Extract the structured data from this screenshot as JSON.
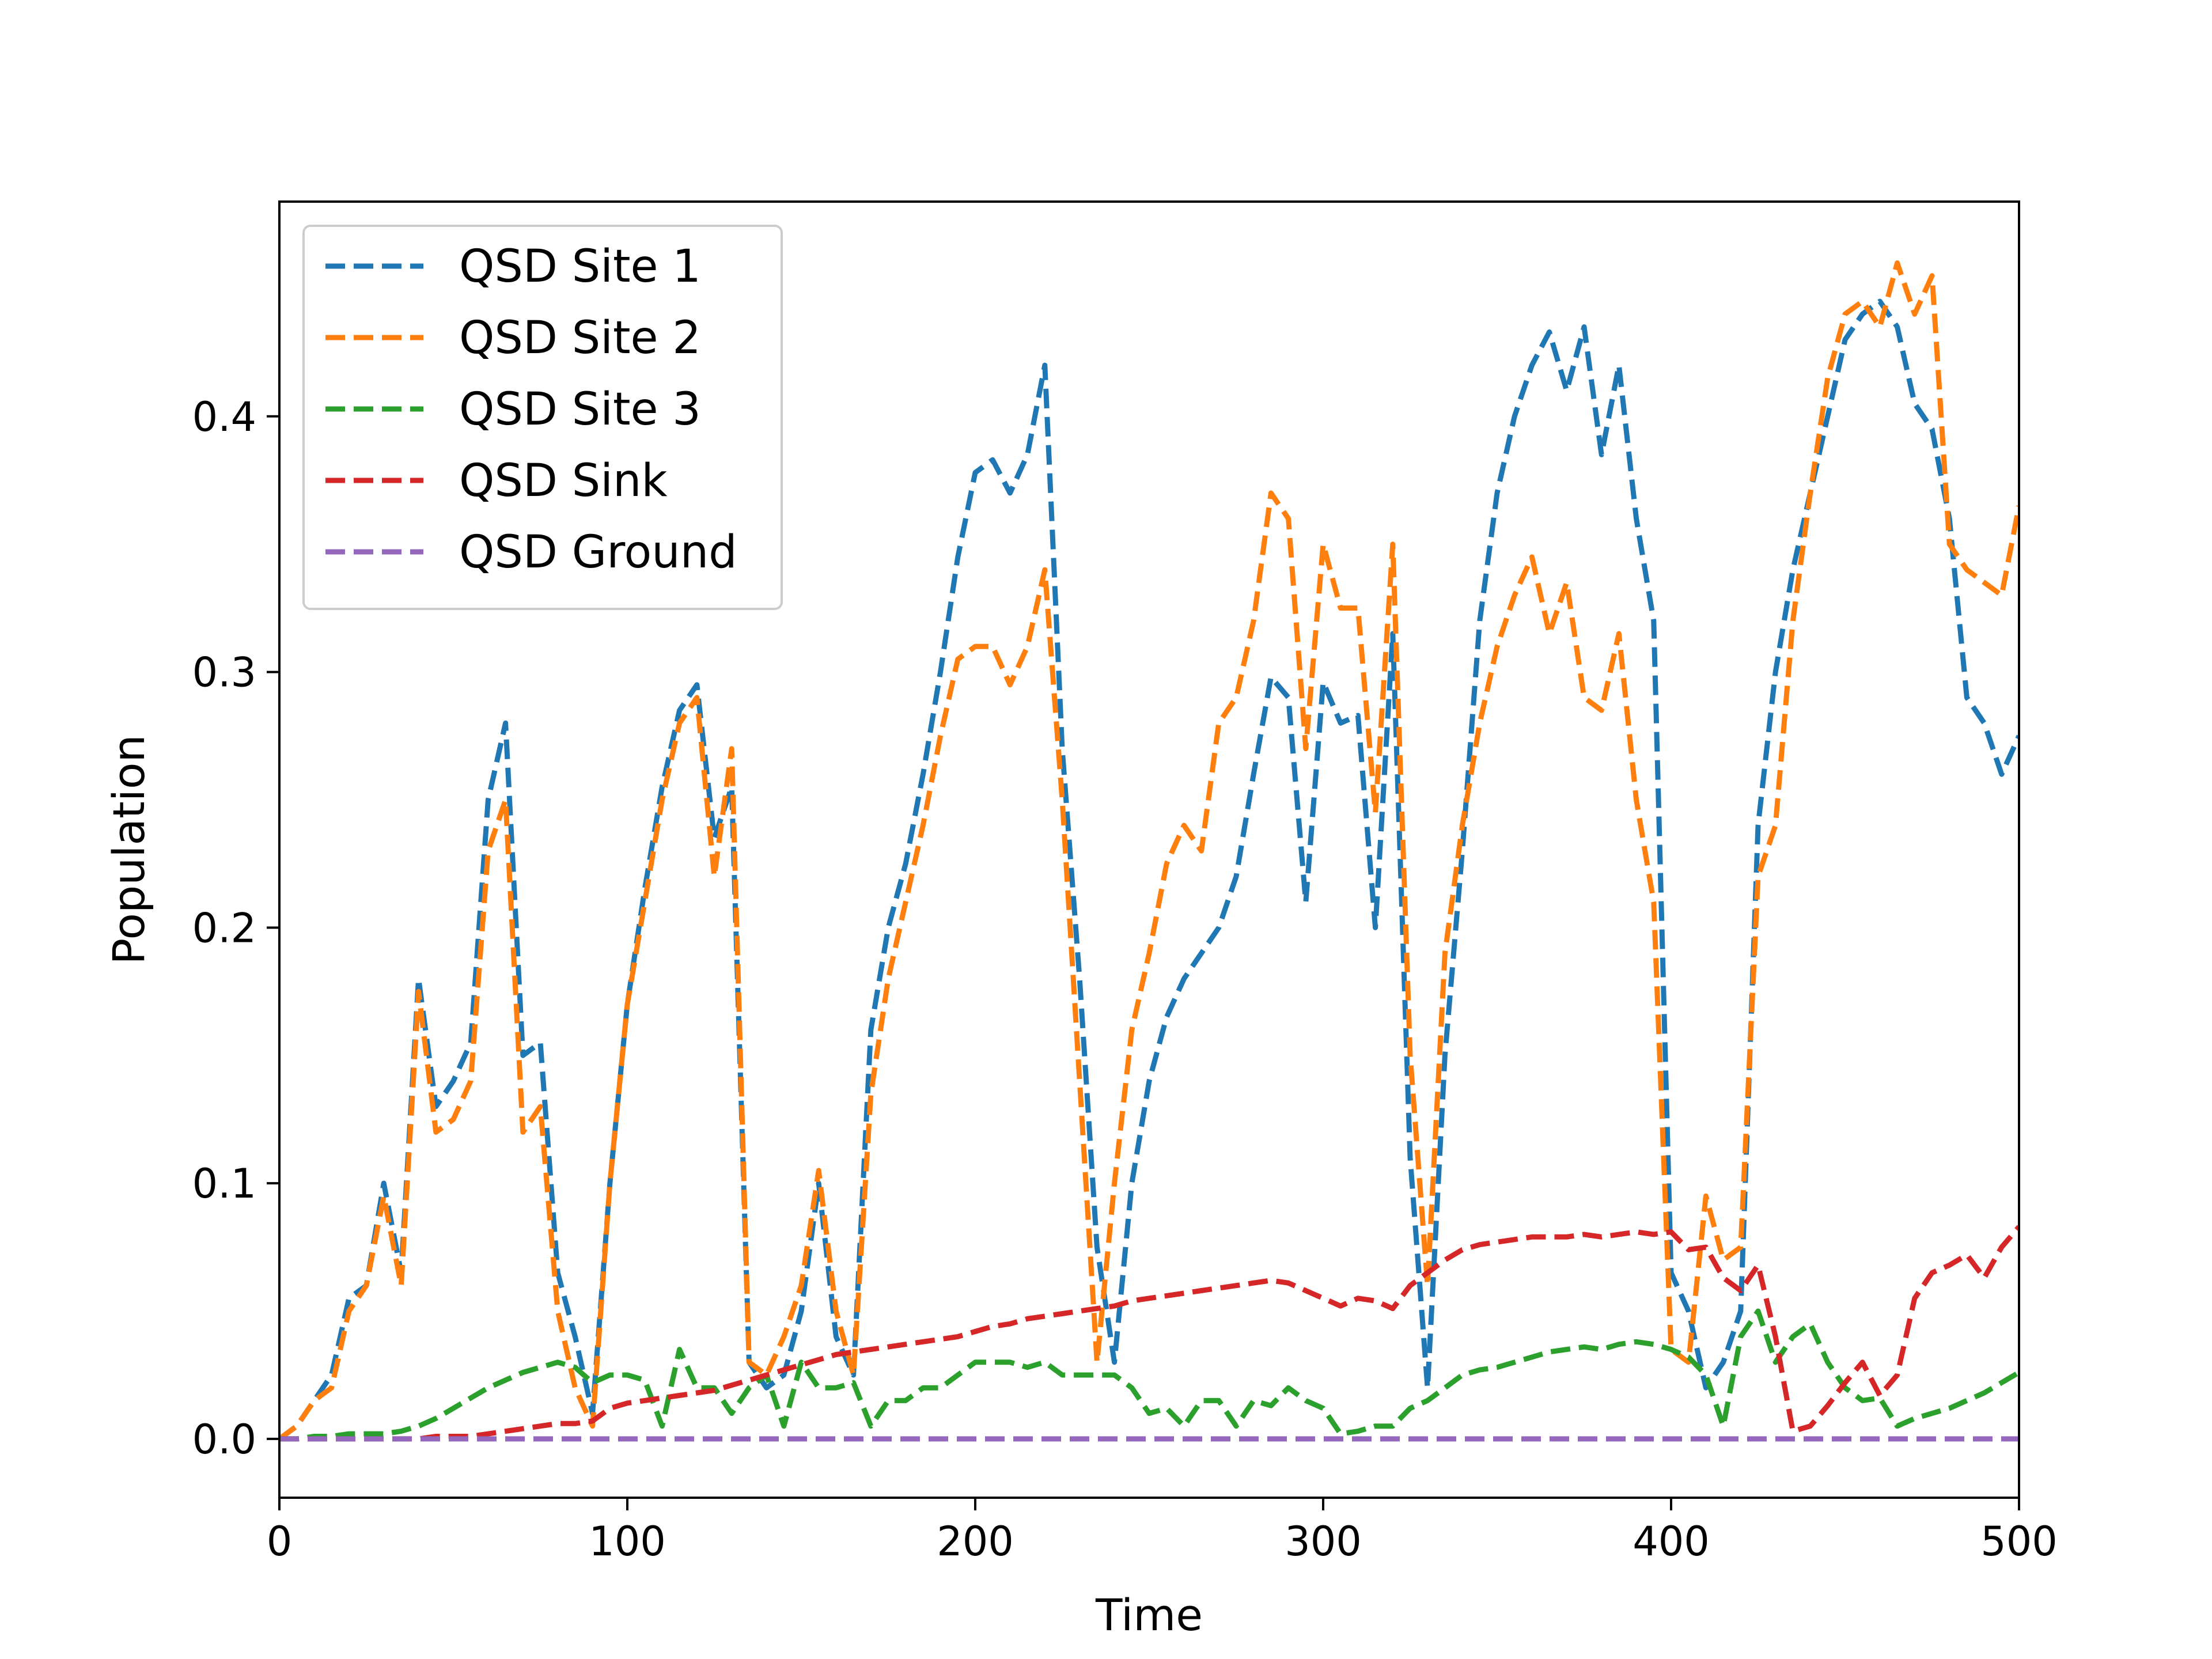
{
  "chart_data": {
    "type": "line",
    "xlabel": "Time",
    "ylabel": "Population",
    "xlim": [
      0,
      500
    ],
    "ylim": [
      -0.023,
      0.484
    ],
    "xticks": [
      0,
      100,
      200,
      300,
      400,
      500
    ],
    "yticks": [
      0.0,
      0.1,
      0.2,
      0.3,
      0.4
    ],
    "xtick_labels": [
      "0",
      "100",
      "200",
      "300",
      "400",
      "500"
    ],
    "ytick_labels": [
      "0.0",
      "0.1",
      "0.2",
      "0.3",
      "0.4"
    ],
    "grid": false,
    "legend": "upper-left",
    "line_style": "dashed",
    "series": [
      {
        "name": "QSD Site 1",
        "color": "#1f77b4",
        "x": [
          0,
          5,
          10,
          15,
          20,
          25,
          30,
          35,
          40,
          45,
          50,
          55,
          60,
          65,
          70,
          75,
          80,
          85,
          90,
          95,
          100,
          105,
          110,
          115,
          120,
          125,
          130,
          135,
          140,
          145,
          150,
          155,
          160,
          165,
          170,
          175,
          180,
          185,
          190,
          195,
          200,
          205,
          210,
          215,
          220,
          225,
          230,
          235,
          240,
          245,
          250,
          255,
          260,
          265,
          270,
          275,
          280,
          285,
          290,
          295,
          300,
          305,
          310,
          315,
          320,
          325,
          330,
          335,
          340,
          345,
          350,
          355,
          360,
          365,
          370,
          375,
          380,
          385,
          390,
          395,
          400,
          405,
          410,
          415,
          420,
          425,
          430,
          435,
          440,
          445,
          450,
          455,
          460,
          465,
          470,
          475,
          480,
          485,
          490,
          495,
          500
        ],
        "values": [
          0,
          0.005,
          0.015,
          0.025,
          0.055,
          0.06,
          0.1,
          0.065,
          0.18,
          0.13,
          0.14,
          0.155,
          0.25,
          0.28,
          0.15,
          0.155,
          0.065,
          0.04,
          0.01,
          0.1,
          0.17,
          0.215,
          0.255,
          0.285,
          0.295,
          0.235,
          0.255,
          0.03,
          0.02,
          0.025,
          0.05,
          0.1,
          0.04,
          0.025,
          0.16,
          0.2,
          0.225,
          0.26,
          0.3,
          0.345,
          0.378,
          0.383,
          0.37,
          0.385,
          0.42,
          0.27,
          0.18,
          0.075,
          0.03,
          0.1,
          0.14,
          0.165,
          0.18,
          0.19,
          0.2,
          0.22,
          0.26,
          0.298,
          0.29,
          0.21,
          0.296,
          0.28,
          0.283,
          0.2,
          0.315,
          0.11,
          0.02,
          0.15,
          0.23,
          0.32,
          0.37,
          0.4,
          0.42,
          0.433,
          0.41,
          0.435,
          0.385,
          0.42,
          0.36,
          0.32,
          0.065,
          0.05,
          0.02,
          0.03,
          0.05,
          0.24,
          0.3,
          0.34,
          0.37,
          0.4,
          0.43,
          0.44,
          0.445,
          0.435,
          0.405,
          0.395,
          0.36,
          0.29,
          0.28,
          0.26,
          0.275
        ]
      },
      {
        "name": "QSD Site 2",
        "color": "#ff7f0e",
        "x": [
          0,
          5,
          10,
          15,
          20,
          25,
          30,
          35,
          40,
          45,
          50,
          55,
          60,
          65,
          70,
          75,
          80,
          85,
          90,
          95,
          100,
          105,
          110,
          115,
          120,
          125,
          130,
          135,
          140,
          145,
          150,
          155,
          160,
          165,
          170,
          175,
          180,
          185,
          190,
          195,
          200,
          205,
          210,
          215,
          220,
          225,
          230,
          235,
          240,
          245,
          250,
          255,
          260,
          265,
          270,
          275,
          280,
          285,
          290,
          295,
          300,
          305,
          310,
          315,
          320,
          325,
          330,
          335,
          340,
          345,
          350,
          355,
          360,
          365,
          370,
          375,
          380,
          385,
          390,
          395,
          400,
          405,
          410,
          415,
          420,
          425,
          430,
          435,
          440,
          445,
          450,
          455,
          460,
          465,
          470,
          475,
          480,
          485,
          490,
          495,
          500
        ],
        "values": [
          0,
          0.005,
          0.015,
          0.02,
          0.05,
          0.06,
          0.095,
          0.06,
          0.175,
          0.12,
          0.125,
          0.14,
          0.23,
          0.25,
          0.12,
          0.13,
          0.05,
          0.02,
          0.005,
          0.1,
          0.17,
          0.21,
          0.25,
          0.28,
          0.29,
          0.22,
          0.27,
          0.03,
          0.025,
          0.04,
          0.06,
          0.105,
          0.05,
          0.025,
          0.135,
          0.18,
          0.21,
          0.24,
          0.275,
          0.305,
          0.31,
          0.31,
          0.295,
          0.31,
          0.34,
          0.25,
          0.14,
          0.03,
          0.1,
          0.16,
          0.19,
          0.225,
          0.24,
          0.23,
          0.28,
          0.29,
          0.32,
          0.37,
          0.36,
          0.27,
          0.35,
          0.325,
          0.325,
          0.245,
          0.35,
          0.15,
          0.06,
          0.19,
          0.24,
          0.28,
          0.31,
          0.33,
          0.345,
          0.315,
          0.335,
          0.29,
          0.285,
          0.315,
          0.25,
          0.21,
          0.035,
          0.03,
          0.095,
          0.07,
          0.075,
          0.22,
          0.24,
          0.32,
          0.37,
          0.415,
          0.44,
          0.445,
          0.435,
          0.46,
          0.44,
          0.455,
          0.35,
          0.34,
          0.335,
          0.33,
          0.365
        ]
      },
      {
        "name": "QSD Site 3",
        "color": "#2ca02c",
        "x": [
          0,
          5,
          10,
          15,
          20,
          25,
          30,
          35,
          40,
          45,
          50,
          55,
          60,
          65,
          70,
          75,
          80,
          85,
          90,
          95,
          100,
          105,
          110,
          115,
          120,
          125,
          130,
          135,
          140,
          145,
          150,
          155,
          160,
          165,
          170,
          175,
          180,
          185,
          190,
          195,
          200,
          205,
          210,
          215,
          220,
          225,
          230,
          235,
          240,
          245,
          250,
          255,
          260,
          265,
          270,
          275,
          280,
          285,
          290,
          295,
          300,
          305,
          310,
          315,
          320,
          325,
          330,
          335,
          340,
          345,
          350,
          355,
          360,
          365,
          370,
          375,
          380,
          385,
          390,
          395,
          400,
          405,
          410,
          415,
          420,
          425,
          430,
          435,
          440,
          445,
          450,
          455,
          460,
          465,
          470,
          475,
          480,
          485,
          490,
          495,
          500
        ],
        "values": [
          0,
          0,
          0.001,
          0.001,
          0.002,
          0.002,
          0.002,
          0.003,
          0.005,
          0.008,
          0.012,
          0.016,
          0.02,
          0.023,
          0.026,
          0.028,
          0.03,
          0.028,
          0.022,
          0.025,
          0.025,
          0.023,
          0.005,
          0.035,
          0.02,
          0.02,
          0.01,
          0.02,
          0.025,
          0.005,
          0.03,
          0.02,
          0.02,
          0.022,
          0.005,
          0.015,
          0.015,
          0.02,
          0.02,
          0.025,
          0.03,
          0.03,
          0.03,
          0.028,
          0.03,
          0.025,
          0.025,
          0.025,
          0.025,
          0.02,
          0.01,
          0.012,
          0.005,
          0.015,
          0.015,
          0.005,
          0.015,
          0.013,
          0.02,
          0.015,
          0.012,
          0.002,
          0.003,
          0.005,
          0.005,
          0.012,
          0.015,
          0.02,
          0.025,
          0.027,
          0.028,
          0.03,
          0.032,
          0.034,
          0.035,
          0.036,
          0.035,
          0.037,
          0.038,
          0.037,
          0.035,
          0.032,
          0.025,
          0.005,
          0.04,
          0.05,
          0.03,
          0.04,
          0.045,
          0.03,
          0.02,
          0.015,
          0.016,
          0.005,
          0.008,
          0.01,
          0.012,
          0.015,
          0.018,
          0.022,
          0.026
        ]
      },
      {
        "name": "QSD Sink",
        "color": "#d62728",
        "x": [
          0,
          5,
          10,
          15,
          20,
          25,
          30,
          35,
          40,
          45,
          50,
          55,
          60,
          65,
          70,
          75,
          80,
          85,
          90,
          95,
          100,
          105,
          110,
          115,
          120,
          125,
          130,
          135,
          140,
          145,
          150,
          155,
          160,
          165,
          170,
          175,
          180,
          185,
          190,
          195,
          200,
          205,
          210,
          215,
          220,
          225,
          230,
          235,
          240,
          245,
          250,
          255,
          260,
          265,
          270,
          275,
          280,
          285,
          290,
          295,
          300,
          305,
          310,
          315,
          320,
          325,
          330,
          335,
          340,
          345,
          350,
          355,
          360,
          365,
          370,
          375,
          380,
          385,
          390,
          395,
          400,
          405,
          410,
          415,
          420,
          425,
          430,
          435,
          440,
          445,
          450,
          455,
          460,
          465,
          470,
          475,
          480,
          485,
          490,
          495,
          500
        ],
        "values": [
          0,
          0,
          0,
          0,
          0,
          0,
          0,
          0,
          0,
          0.001,
          0.001,
          0.001,
          0.002,
          0.003,
          0.004,
          0.005,
          0.006,
          0.006,
          0.007,
          0.012,
          0.014,
          0.015,
          0.016,
          0.017,
          0.018,
          0.019,
          0.021,
          0.023,
          0.025,
          0.027,
          0.029,
          0.031,
          0.033,
          0.034,
          0.035,
          0.036,
          0.037,
          0.038,
          0.039,
          0.04,
          0.042,
          0.044,
          0.045,
          0.047,
          0.048,
          0.049,
          0.05,
          0.051,
          0.052,
          0.054,
          0.055,
          0.056,
          0.057,
          0.058,
          0.059,
          0.06,
          0.061,
          0.062,
          0.061,
          0.058,
          0.055,
          0.052,
          0.055,
          0.054,
          0.051,
          0.06,
          0.065,
          0.07,
          0.074,
          0.076,
          0.077,
          0.078,
          0.079,
          0.079,
          0.079,
          0.08,
          0.079,
          0.08,
          0.081,
          0.08,
          0.081,
          0.074,
          0.075,
          0.063,
          0.058,
          0.068,
          0.04,
          0.003,
          0.005,
          0.013,
          0.022,
          0.03,
          0.017,
          0.025,
          0.055,
          0.065,
          0.068,
          0.072,
          0.063,
          0.075,
          0.083
        ]
      },
      {
        "name": "QSD Ground",
        "color": "#9467bd",
        "x": [
          0,
          500
        ],
        "values": [
          0,
          0
        ]
      }
    ]
  }
}
